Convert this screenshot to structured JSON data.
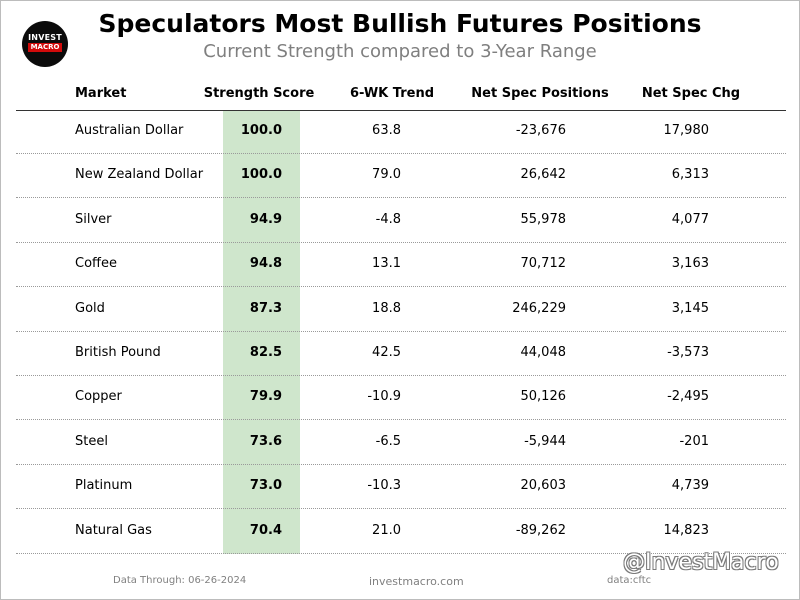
{
  "logo": {
    "line1": "INVEST",
    "line2": "MACRO",
    "colors": {
      "circle": "#0b0b0b",
      "band": "#d10b0b"
    }
  },
  "title": "Speculators Most Bullish Futures Positions",
  "subtitle": "Current Strength compared to 3-Year Range",
  "chart_data": {
    "type": "table",
    "title": "Speculators Most Bullish Futures Positions",
    "subtitle": "Current Strength compared to 3-Year Range",
    "columns": [
      "Market",
      "Strength Score",
      "6-WK Trend",
      "Net Spec Positions",
      "Net Spec Chg"
    ],
    "rows": [
      {
        "market": "Australian Dollar",
        "score": "100.0",
        "trend": "63.8",
        "net": "-23,676",
        "chg": "17,980"
      },
      {
        "market": "New Zealand Dollar",
        "score": "100.0",
        "trend": "79.0",
        "net": "26,642",
        "chg": "6,313"
      },
      {
        "market": "Silver",
        "score": "94.9",
        "trend": "-4.8",
        "net": "55,978",
        "chg": "4,077"
      },
      {
        "market": "Coffee",
        "score": "94.8",
        "trend": "13.1",
        "net": "70,712",
        "chg": "3,163"
      },
      {
        "market": "Gold",
        "score": "87.3",
        "trend": "18.8",
        "net": "246,229",
        "chg": "3,145"
      },
      {
        "market": "British Pound",
        "score": "82.5",
        "trend": "42.5",
        "net": "44,048",
        "chg": "-3,573"
      },
      {
        "market": "Copper",
        "score": "79.9",
        "trend": "-10.9",
        "net": "50,126",
        "chg": "-2,495"
      },
      {
        "market": "Steel",
        "score": "73.6",
        "trend": "-6.5",
        "net": "-5,944",
        "chg": "-201"
      },
      {
        "market": "Platinum",
        "score": "73.0",
        "trend": "-10.3",
        "net": "20,603",
        "chg": "4,739"
      },
      {
        "market": "Natural Gas",
        "score": "70.4",
        "trend": "21.0",
        "net": "-89,262",
        "chg": "14,823"
      }
    ],
    "highlight_column": "Strength Score",
    "highlight_color": "#cfe6cc"
  },
  "footer": {
    "data_through": "Data Through: 06-26-2024",
    "site": "investmacro.com",
    "source": "data:cftc"
  },
  "watermark": "@InvestMacro"
}
